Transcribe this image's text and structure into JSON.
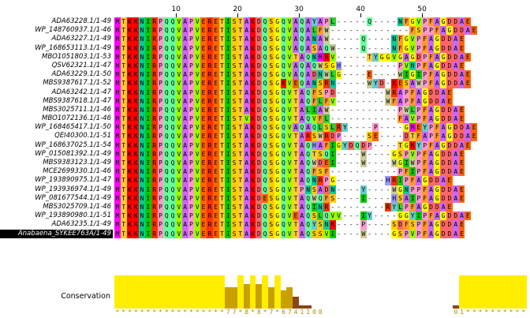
{
  "ruler": {
    "ticks": [
      "10",
      "20",
      "30",
      "40",
      "50"
    ]
  },
  "sequences": [
    {
      "name": "ADA63228.1/1-49",
      "seq": "MTKKNIRPQQVAPVERETISTAKDQSGQVAQAYAPL-----Q----NFGVPFAGDDAE"
    },
    {
      "name": "WP_148760937.1/1-46",
      "seq": "MTKKNIRPQQVAPVERETISTAKDQSGQVAQALFW-------------FSPPFAGDDAE"
    },
    {
      "name": "ADA63227.1/1-49",
      "seq": "MTKKNIRPQQVAPVERETISTAKDQSGQVAQANAW-----Q----NFGVPFAGDDAE"
    },
    {
      "name": "WP_168653113.1/1-49",
      "seq": "MTKKNIRPQQVAPVERETISTAKDQSGQVAQASAQW----Q----NFGVPFAGDDAE"
    },
    {
      "name": "MBO1051803.1/1-53",
      "seq": "MTKKNIRPQQVAPVERETISTAKDQSGQVTAQNMKV-----TYGGVGAGDPFAGDDAE"
    },
    {
      "name": "QSV62321.1/1-47",
      "seq": "MTKKNIRPQQVAPVERETISTAKDQSGQVAQAQWSGH---------PVNPFAGDDAE"
    },
    {
      "name": "ADA63229.1/1-50",
      "seq": "MTKKNIRPQQVAPVERETISTAKDQSGQVAQADNWLG----E----WIGIPFAGDDAE"
    },
    {
      "name": "MBS9387617.1/1-52",
      "seq": "MTKKNIRPQQVAPVERETISTAKDQSGKVEQANSRN-----WYD-KESAWPFAGDDAE"
    },
    {
      "name": "ADA63242.1/1-47",
      "seq": "MTKKNIRPQQVAPVERETISTAKDQSGQVTAQFSPD--------WRAPFAGDDAE"
    },
    {
      "name": "MBS9387618.1/1-47",
      "seq": "MTKKNIRPQQVAPVERETISTAKDQSGQVTAQFLFV--------WFAPFAGDDAE"
    },
    {
      "name": "MBS3025711.1/1-46",
      "seq": "MTKKNIRPQQVAPVERETISTAKDQSGQVTALIAW-----------PWLPFAGDDAE"
    },
    {
      "name": "MBO1072136.1/1-46",
      "seq": "MTKKNIRPQQVAPVERETISTVKDQSGQVTAQVFL-----------FAVPFAGDDAE"
    },
    {
      "name": "WP_168465417.1/1-50",
      "seq": "MTKKNIRPQQVAPVERETISTAKDQSGQVAQAQLSLRY----P----GMEYPFAGDDAE"
    },
    {
      "name": "QEI40300.1/1-51",
      "seq": "MTKKNIRPQQVAPVERETISTAKDQSGQVTARSWRDP----SE----DTFAPFAGDDAE"
    },
    {
      "name": "WP_168637025.1/1-54",
      "seq": "MTKKNIRPQQVAPVERETISTAKDQSGQVTAQHAFIGYDQDP----TGKYPFAGDDAE"
    },
    {
      "name": "WP_015081392.1/1-49",
      "seq": "MTKKNIRPQQVAPVERETISTAKDQSGQVTAQTSQI----W----GSPVPFAGDDAE"
    },
    {
      "name": "MBS9383123.1/1-49",
      "seq": "MTKKNIRPQQVAPVERETISTAKDQSGQVTAQWDEI----W----WGIWPFAGDDAE"
    },
    {
      "name": "MCE2699330.1/1-46",
      "seq": "MTKKNIRPQQVAPVERETISTAKDQSGQVTAQFSF-----------PFIPFAGDDAE"
    },
    {
      "name": "WP_193890975.1/1-47",
      "seq": "MTKKNIRPQQVAPVERETISTAKDQSGQVTAQNRPG--------HRIPFAGDDAE"
    },
    {
      "name": "WP_193936974.1/1-49",
      "seq": "MTKKNIRPQQVAPVERETISTAKDQSGQVTPNSADN----Y----WGNPPFAGDDAE"
    },
    {
      "name": "WP_081677544.1/1-49",
      "seq": "MTKKNIRPQQVAPVERETISTAKDESGQVTAQWQFS----I----HSAIPFAGDDAE"
    },
    {
      "name": "MBS3025709.1/1-46",
      "seq": "MTKKNIRPQQVAPVERETISTAKDQSGQVTAQINR---------RYLPFAGDDAE"
    },
    {
      "name": "WP_193890980.1/1-51",
      "seq": "MTKKNIRPQQVAPVERETISTAKDQSGQVEAQSLQVV---IY----GGYIPFAGDDAE"
    },
    {
      "name": "ADA63235.1/1-49",
      "seq": "MTKKNIRPQQVAPVERETISTAKDQSGQVTAQYSNK----P----SDFSPFAGDDAE"
    },
    {
      "name": "Anabaena_SYKEE763A/1-49",
      "seq": "MTKKNIRPQQVAPVERETISTAKDQSGQVTAQSSVI----W----GSPVPFAGDDAE",
      "selected": true
    }
  ],
  "conservation": {
    "label": "Conservation",
    "values": [
      11,
      11,
      11,
      11,
      11,
      11,
      11,
      11,
      11,
      11,
      11,
      11,
      11,
      11,
      11,
      11,
      11,
      11,
      7,
      7,
      11,
      8,
      11,
      8,
      11,
      7,
      11,
      6,
      7,
      4,
      1,
      1,
      0,
      0,
      0,
      0,
      0,
      0,
      0,
      0,
      0,
      0,
      0,
      0,
      0,
      0,
      0,
      0,
      0,
      0,
      0,
      0,
      0,
      0,
      0,
      1,
      11,
      11,
      11,
      11,
      11,
      11,
      11,
      11,
      11,
      11,
      11,
      11,
      11,
      11
    ],
    "annotations": [
      "*",
      "*",
      "*",
      "*",
      "*",
      "*",
      "*",
      "*",
      "*",
      "*",
      "*",
      "*",
      "*",
      "*",
      "*",
      "*",
      "*",
      "*",
      "7",
      "7",
      "*",
      "8",
      "*",
      "8",
      "*",
      "7",
      "*",
      "6",
      "7",
      "4",
      "1",
      "1",
      "0",
      "0",
      "",
      "",
      "",
      "",
      "",
      "",
      "",
      "",
      "",
      "",
      "",
      "",
      "",
      "",
      "",
      "",
      "",
      "",
      "",
      "",
      "",
      "0",
      "1",
      "*",
      "*",
      "*",
      "*",
      "*",
      "*",
      "*",
      "*",
      "*",
      "*",
      "*",
      "*",
      "*",
      "*"
    ]
  },
  "colors": {
    "M": "#ff00ff",
    "T": "#ffcc33",
    "K": "#ff0000",
    "N": "#00cc99",
    "I": "#00cc00",
    "R": "#ff3300",
    "P": "#ff99cc",
    "Q": "#66ff99",
    "V": "#99ff00",
    "A": "#cc66ff",
    "E": "#ff6600",
    "S": "#ffcc00",
    "D": "#ff6666",
    "G": "#ffff00",
    "L": "#33cc33",
    "F": "#ff9933",
    "W": "#cccc99",
    "Y": "#66cccc",
    "H": "#9999ff",
    "-": "#ffffff"
  },
  "cons_color_full": "#ffee00",
  "cons_color_low": "#8b4513"
}
